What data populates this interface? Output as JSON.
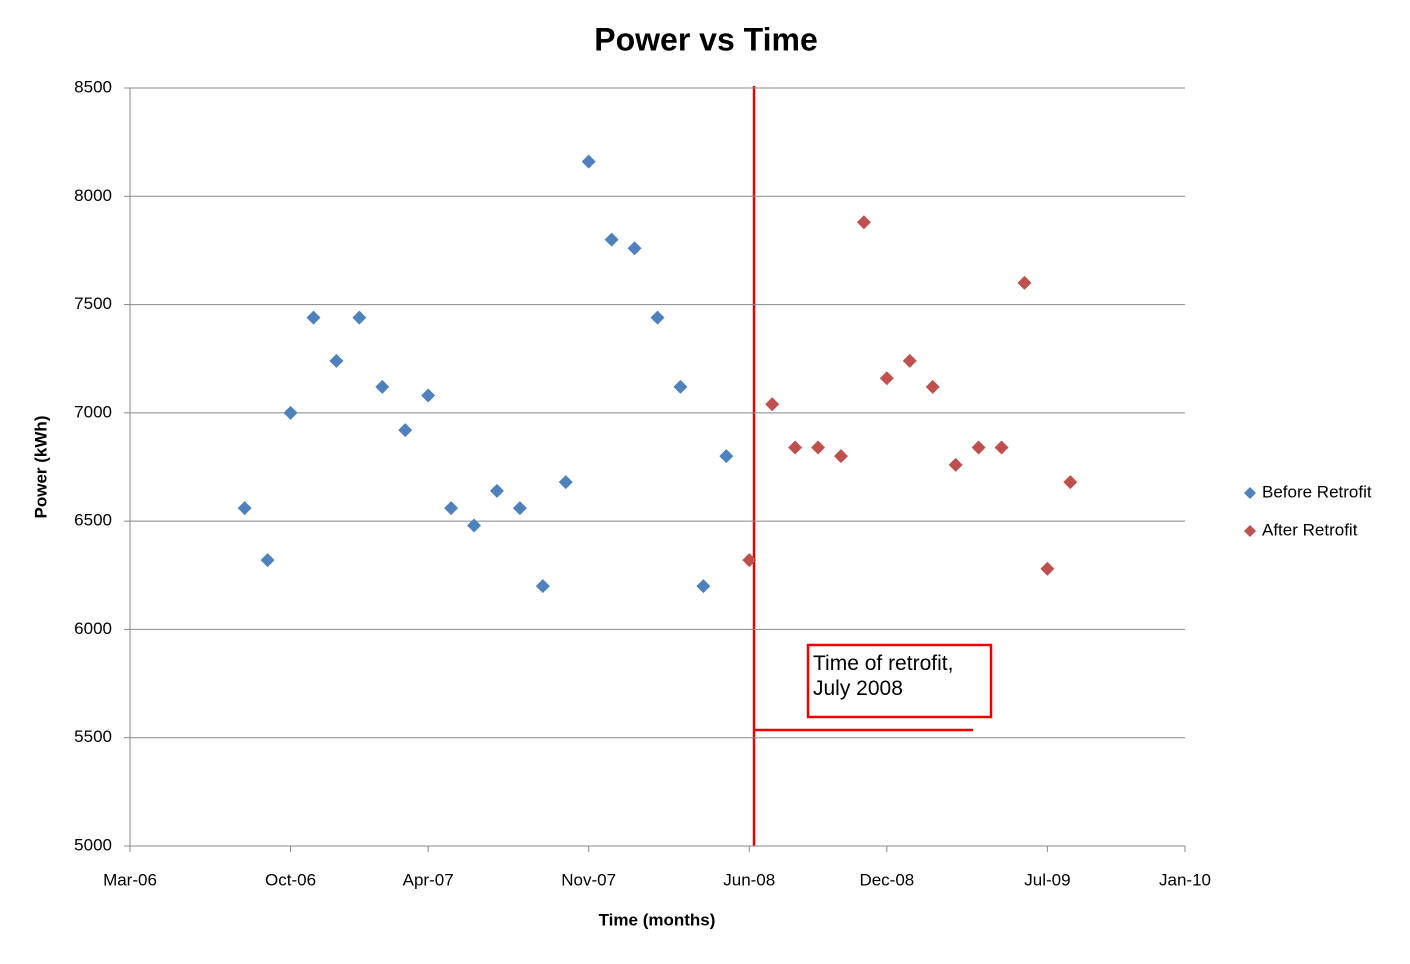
{
  "chart_data": {
    "type": "scatter",
    "title": "Power vs Time",
    "x_label": "Time (months)",
    "y_label": "Power (kWh)",
    "xlim": [
      "2006-03",
      "2010-01"
    ],
    "xticks": [
      {
        "value": "2006-03",
        "label": "Mar-06"
      },
      {
        "value": "2006-10",
        "label": "Oct-06"
      },
      {
        "value": "2007-04",
        "label": "Apr-07"
      },
      {
        "value": "2007-11",
        "label": "Nov-07"
      },
      {
        "value": "2008-06",
        "label": "Jun-08"
      },
      {
        "value": "2008-12",
        "label": "Dec-08"
      },
      {
        "value": "2009-07",
        "label": "Jul-09"
      },
      {
        "value": "2010-01",
        "label": "Jan-10"
      }
    ],
    "ylim": [
      5000,
      8500
    ],
    "yticks": [
      5000,
      5500,
      6000,
      6500,
      7000,
      7500,
      8000,
      8500
    ],
    "grid": true,
    "legend": "right",
    "annotation": "Time of retrofit,\nJuly 2008",
    "series": [
      {
        "name": "Before Retrofit",
        "color": "#4f81bd",
        "x": [
          "2006-08",
          "2006-09",
          "2006-10",
          "2006-11",
          "2006-12",
          "2007-01",
          "2007-02",
          "2007-03",
          "2007-04",
          "2007-05",
          "2007-06",
          "2007-07",
          "2007-08",
          "2007-09",
          "2007-10",
          "2007-11",
          "2007-12",
          "2008-01",
          "2008-02",
          "2008-03",
          "2008-04",
          "2008-05"
        ],
        "values": [
          6560,
          6320,
          7000,
          7440,
          7240,
          7440,
          7120,
          6920,
          7080,
          6560,
          6480,
          6640,
          6560,
          6200,
          6680,
          8160,
          7800,
          7760,
          7440,
          7120,
          6200,
          6800
        ]
      },
      {
        "name": "After Retrofit",
        "color": "#c0504d",
        "x": [
          "2008-06",
          "2008-07",
          "2008-08",
          "2008-09",
          "2008-10",
          "2008-11",
          "2008-12",
          "2009-01",
          "2009-02",
          "2009-03",
          "2009-04",
          "2009-05",
          "2009-06",
          "2009-07",
          "2009-08"
        ],
        "values": [
          6320,
          7040,
          6840,
          6840,
          6800,
          7880,
          7160,
          7240,
          7120,
          6760,
          6840,
          6840,
          7600,
          6280,
          6680
        ]
      }
    ]
  }
}
